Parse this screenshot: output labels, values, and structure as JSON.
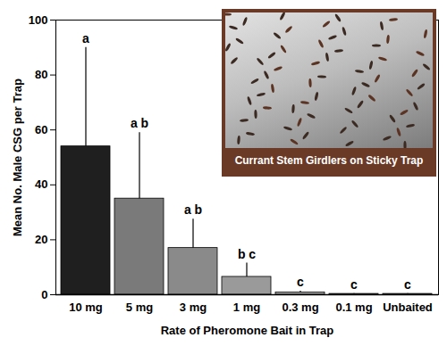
{
  "chart_data": {
    "type": "bar",
    "categories": [
      "10 mg",
      "5 mg",
      "3 mg",
      "1 mg",
      "0.3 mg",
      "0.1 mg",
      "Unbaited"
    ],
    "values": [
      54,
      35,
      17,
      6.5,
      0.8,
      0.3,
      0.3
    ],
    "error": [
      36,
      24,
      10.5,
      5,
      0.5,
      0.1,
      0.1
    ],
    "significance_letters": [
      "a",
      "a b",
      "a b",
      "b c",
      "c",
      "c",
      "c"
    ],
    "colors": [
      "#1f1f1f",
      "#7a7a7a",
      "#8a8a8a",
      "#9a9a9a",
      "#a8a8a8",
      "#b4b4b4",
      "#c2c2c2"
    ],
    "x_label": "Rate of Pheromone Bait in Trap",
    "y_label": "Mean No. Male CSG per Trap",
    "ylim": [
      0,
      100
    ],
    "yticks": [
      0,
      20,
      40,
      60,
      80,
      100
    ],
    "inset_caption": "Currant Stem Girdlers on Sticky Trap"
  }
}
